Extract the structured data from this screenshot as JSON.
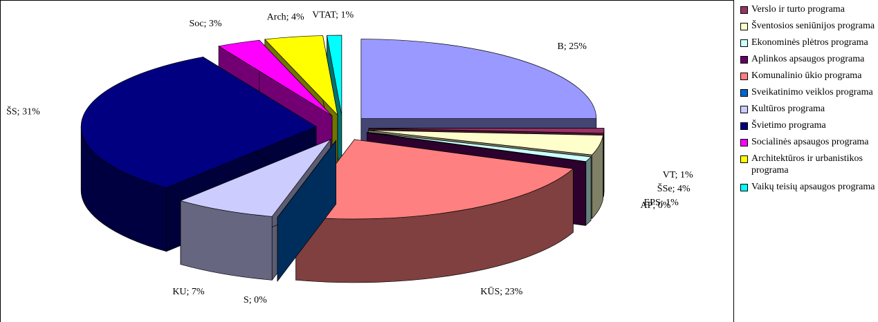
{
  "chart_data": {
    "type": "pie3d",
    "slice_labels": [
      "B",
      "VT",
      "ŠSe",
      "EPS",
      "AP",
      "KŪS",
      "S",
      "KU",
      "ŠS",
      "Soc",
      "Arch",
      "VTAT"
    ],
    "values": [
      25,
      1,
      4,
      1,
      0,
      23,
      0,
      7,
      31,
      3,
      4,
      1
    ],
    "value_labels": [
      "B; 25%",
      "VT; 1%",
      "ŠSe; 4%",
      "EPS; 1%",
      "AP; 0%",
      "KŪS; 23%",
      "S; 0%",
      "KU; 7%",
      "ŠS; 31%",
      "Soc; 3%",
      "Arch; 4%",
      "VTAT; 1%"
    ],
    "colors": [
      "#9999ff",
      "#993366",
      "#ffffcc",
      "#ccffff",
      "#660066",
      "#ff8080",
      "#0066cc",
      "#ccccff",
      "#000080",
      "#ff00ff",
      "#ffff00",
      "#00ffff"
    ],
    "legend": [
      "Verslo ir turto programa",
      "Šventosios seniūnijos programa",
      "Ekonominės plėtros programa",
      "Aplinkos apsaugos programa",
      "Komunalinio ūkio programa",
      "Sveikatinimo veiklos programa",
      "Kultūros programa",
      "Švietimo programa",
      "Socialinės apsaugos programa",
      "Architektūros ir urbanistikos programa",
      "Vaikų teisių apsaugos programa"
    ],
    "legend_colors": [
      "#993366",
      "#ffffcc",
      "#ccffff",
      "#660066",
      "#ff8080",
      "#0066cc",
      "#ccccff",
      "#000080",
      "#ff00ff",
      "#ffff00",
      "#00ffff"
    ]
  }
}
